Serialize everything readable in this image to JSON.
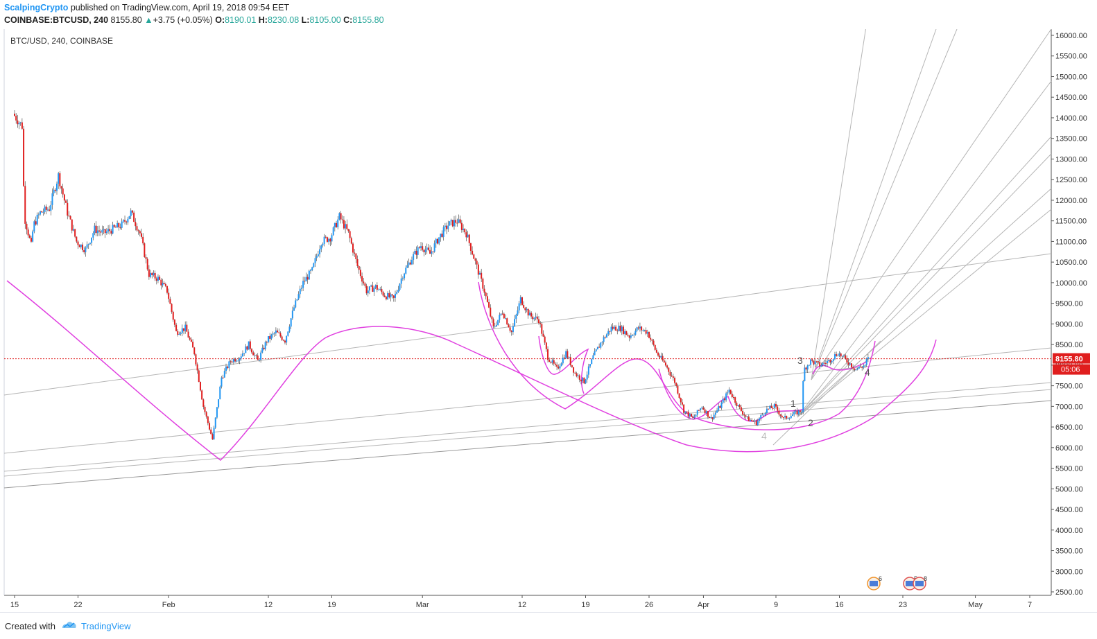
{
  "header": {
    "author": "ScalpingCrypto",
    "published_text": "published on TradingView.com, April 19, 2018 09:54 EET",
    "symbol": "COINBASE:BTCUSD, 240",
    "last": "8155.80",
    "change_arrow": "▲",
    "change": "+3.75 (+0.05%)",
    "o_label": "O:",
    "o_value": "8190.01",
    "h_label": "H:",
    "h_value": "8230.08",
    "l_label": "L:",
    "l_value": "8105.00",
    "c_label": "C:",
    "c_value": "8155.80"
  },
  "chart_data": {
    "type": "candlestick",
    "title": "BTC/USD, 240, COINBASE",
    "ylim": [
      2500,
      16200
    ],
    "y_ticks": [
      "16000.00",
      "15500.00",
      "15000.00",
      "14500.00",
      "14000.00",
      "13500.00",
      "13000.00",
      "12500.00",
      "12000.00",
      "11500.00",
      "11000.00",
      "10500.00",
      "10000.00",
      "9500.00",
      "9000.00",
      "8500.00",
      "8000.00",
      "7500.00",
      "7000.00",
      "6500.00",
      "6000.00",
      "5500.00",
      "5000.00",
      "4500.00",
      "4000.00",
      "3500.00",
      "3000.00",
      "2500.00"
    ],
    "x_ticks": [
      {
        "label": "15",
        "date": "2018-01-15"
      },
      {
        "label": "22",
        "date": "2018-01-22"
      },
      {
        "label": "Feb",
        "date": "2018-02-01"
      },
      {
        "label": "12",
        "date": "2018-02-12"
      },
      {
        "label": "19",
        "date": "2018-02-19"
      },
      {
        "label": "Mar",
        "date": "2018-03-01"
      },
      {
        "label": "12",
        "date": "2018-03-12"
      },
      {
        "label": "19",
        "date": "2018-03-19"
      },
      {
        "label": "26",
        "date": "2018-03-26"
      },
      {
        "label": "Apr",
        "date": "2018-04-01"
      },
      {
        "label": "9",
        "date": "2018-04-09"
      },
      {
        "label": "16",
        "date": "2018-04-16"
      },
      {
        "label": "23",
        "date": "2018-04-23"
      },
      {
        "label": "May",
        "date": "2018-05-01"
      },
      {
        "label": "7",
        "date": "2018-05-07"
      }
    ],
    "price_line": {
      "value": 8155.8,
      "label": "8155.80",
      "countdown": "05:06"
    },
    "up_color": "#2196f3",
    "down_color": "#e01e1e",
    "price_path": [
      [
        "2018-01-15",
        14100
      ],
      [
        "2018-01-16",
        13800
      ],
      [
        "2018-01-16",
        11600
      ],
      [
        "2018-01-17",
        10900
      ],
      [
        "2018-01-17",
        11400
      ],
      [
        "2018-01-18",
        11700
      ],
      [
        "2018-01-19",
        11800
      ],
      [
        "2018-01-20",
        12600
      ],
      [
        "2018-01-21",
        11700
      ],
      [
        "2018-01-22",
        11000
      ],
      [
        "2018-01-23",
        10800
      ],
      [
        "2018-01-24",
        11300
      ],
      [
        "2018-01-25",
        11200
      ],
      [
        "2018-01-26",
        11300
      ],
      [
        "2018-01-27",
        11400
      ],
      [
        "2018-01-28",
        11700
      ],
      [
        "2018-01-29",
        11200
      ],
      [
        "2018-01-30",
        10200
      ],
      [
        "2018-01-31",
        10100
      ],
      [
        "2018-02-01",
        9800
      ],
      [
        "2018-02-02",
        8800
      ],
      [
        "2018-02-03",
        8900
      ],
      [
        "2018-02-04",
        8300
      ],
      [
        "2018-02-05",
        7000
      ],
      [
        "2018-02-06",
        6200
      ],
      [
        "2018-02-07",
        7700
      ],
      [
        "2018-02-08",
        8100
      ],
      [
        "2018-02-09",
        8200
      ],
      [
        "2018-02-10",
        8500
      ],
      [
        "2018-02-11",
        8100
      ],
      [
        "2018-02-12",
        8600
      ],
      [
        "2018-02-13",
        8800
      ],
      [
        "2018-02-14",
        8600
      ],
      [
        "2018-02-15",
        9400
      ],
      [
        "2018-02-16",
        10000
      ],
      [
        "2018-02-17",
        10300
      ],
      [
        "2018-02-18",
        11000
      ],
      [
        "2018-02-19",
        11100
      ],
      [
        "2018-02-20",
        11600
      ],
      [
        "2018-02-21",
        11200
      ],
      [
        "2018-02-22",
        10400
      ],
      [
        "2018-02-23",
        9800
      ],
      [
        "2018-02-24",
        9900
      ],
      [
        "2018-02-25",
        9700
      ],
      [
        "2018-02-26",
        9600
      ],
      [
        "2018-02-27",
        10200
      ],
      [
        "2018-02-28",
        10600
      ],
      [
        "2018-03-01",
        10900
      ],
      [
        "2018-03-02",
        10700
      ],
      [
        "2018-03-03",
        11100
      ],
      [
        "2018-03-04",
        11400
      ],
      [
        "2018-03-05",
        11500
      ],
      [
        "2018-03-06",
        11200
      ],
      [
        "2018-03-07",
        10500
      ],
      [
        "2018-03-08",
        9800
      ],
      [
        "2018-03-09",
        8900
      ],
      [
        "2018-03-10",
        9300
      ],
      [
        "2018-03-11",
        8800
      ],
      [
        "2018-03-12",
        9600
      ],
      [
        "2018-03-13",
        9200
      ],
      [
        "2018-03-14",
        9100
      ],
      [
        "2018-03-15",
        8200
      ],
      [
        "2018-03-16",
        7900
      ],
      [
        "2018-03-17",
        8300
      ],
      [
        "2018-03-18",
        7800
      ],
      [
        "2018-03-19",
        7600
      ],
      [
        "2018-03-20",
        8200
      ],
      [
        "2018-03-21",
        8600
      ],
      [
        "2018-03-22",
        8900
      ],
      [
        "2018-03-23",
        8900
      ],
      [
        "2018-03-24",
        8700
      ],
      [
        "2018-03-25",
        8900
      ],
      [
        "2018-03-26",
        8800
      ],
      [
        "2018-03-27",
        8300
      ],
      [
        "2018-03-28",
        8000
      ],
      [
        "2018-03-29",
        7600
      ],
      [
        "2018-03-30",
        6900
      ],
      [
        "2018-03-31",
        6700
      ],
      [
        "2018-04-01",
        7000
      ],
      [
        "2018-04-02",
        6700
      ],
      [
        "2018-04-03",
        7000
      ],
      [
        "2018-04-04",
        7400
      ],
      [
        "2018-04-05",
        7000
      ],
      [
        "2018-04-06",
        6700
      ],
      [
        "2018-04-07",
        6600
      ],
      [
        "2018-04-08",
        6900
      ],
      [
        "2018-04-09",
        7000
      ],
      [
        "2018-04-10",
        6700
      ],
      [
        "2018-04-11",
        6800
      ],
      [
        "2018-04-12",
        6900
      ],
      [
        "2018-04-12",
        7900
      ],
      [
        "2018-04-13",
        8100
      ],
      [
        "2018-04-14",
        8000
      ],
      [
        "2018-04-15",
        8100
      ],
      [
        "2018-04-16",
        8300
      ],
      [
        "2018-04-17",
        8100
      ],
      [
        "2018-04-18",
        7900
      ],
      [
        "2018-04-19",
        8000
      ],
      [
        "2018-04-19",
        8155.8
      ]
    ],
    "wave_labels": [
      "1",
      "2",
      "3",
      "4",
      "4"
    ],
    "event_markers": [
      {
        "label": "6"
      },
      {
        "label": "5"
      },
      {
        "label": "8"
      }
    ]
  },
  "footer": {
    "created_with": "Created with",
    "brand": "TradingView"
  }
}
